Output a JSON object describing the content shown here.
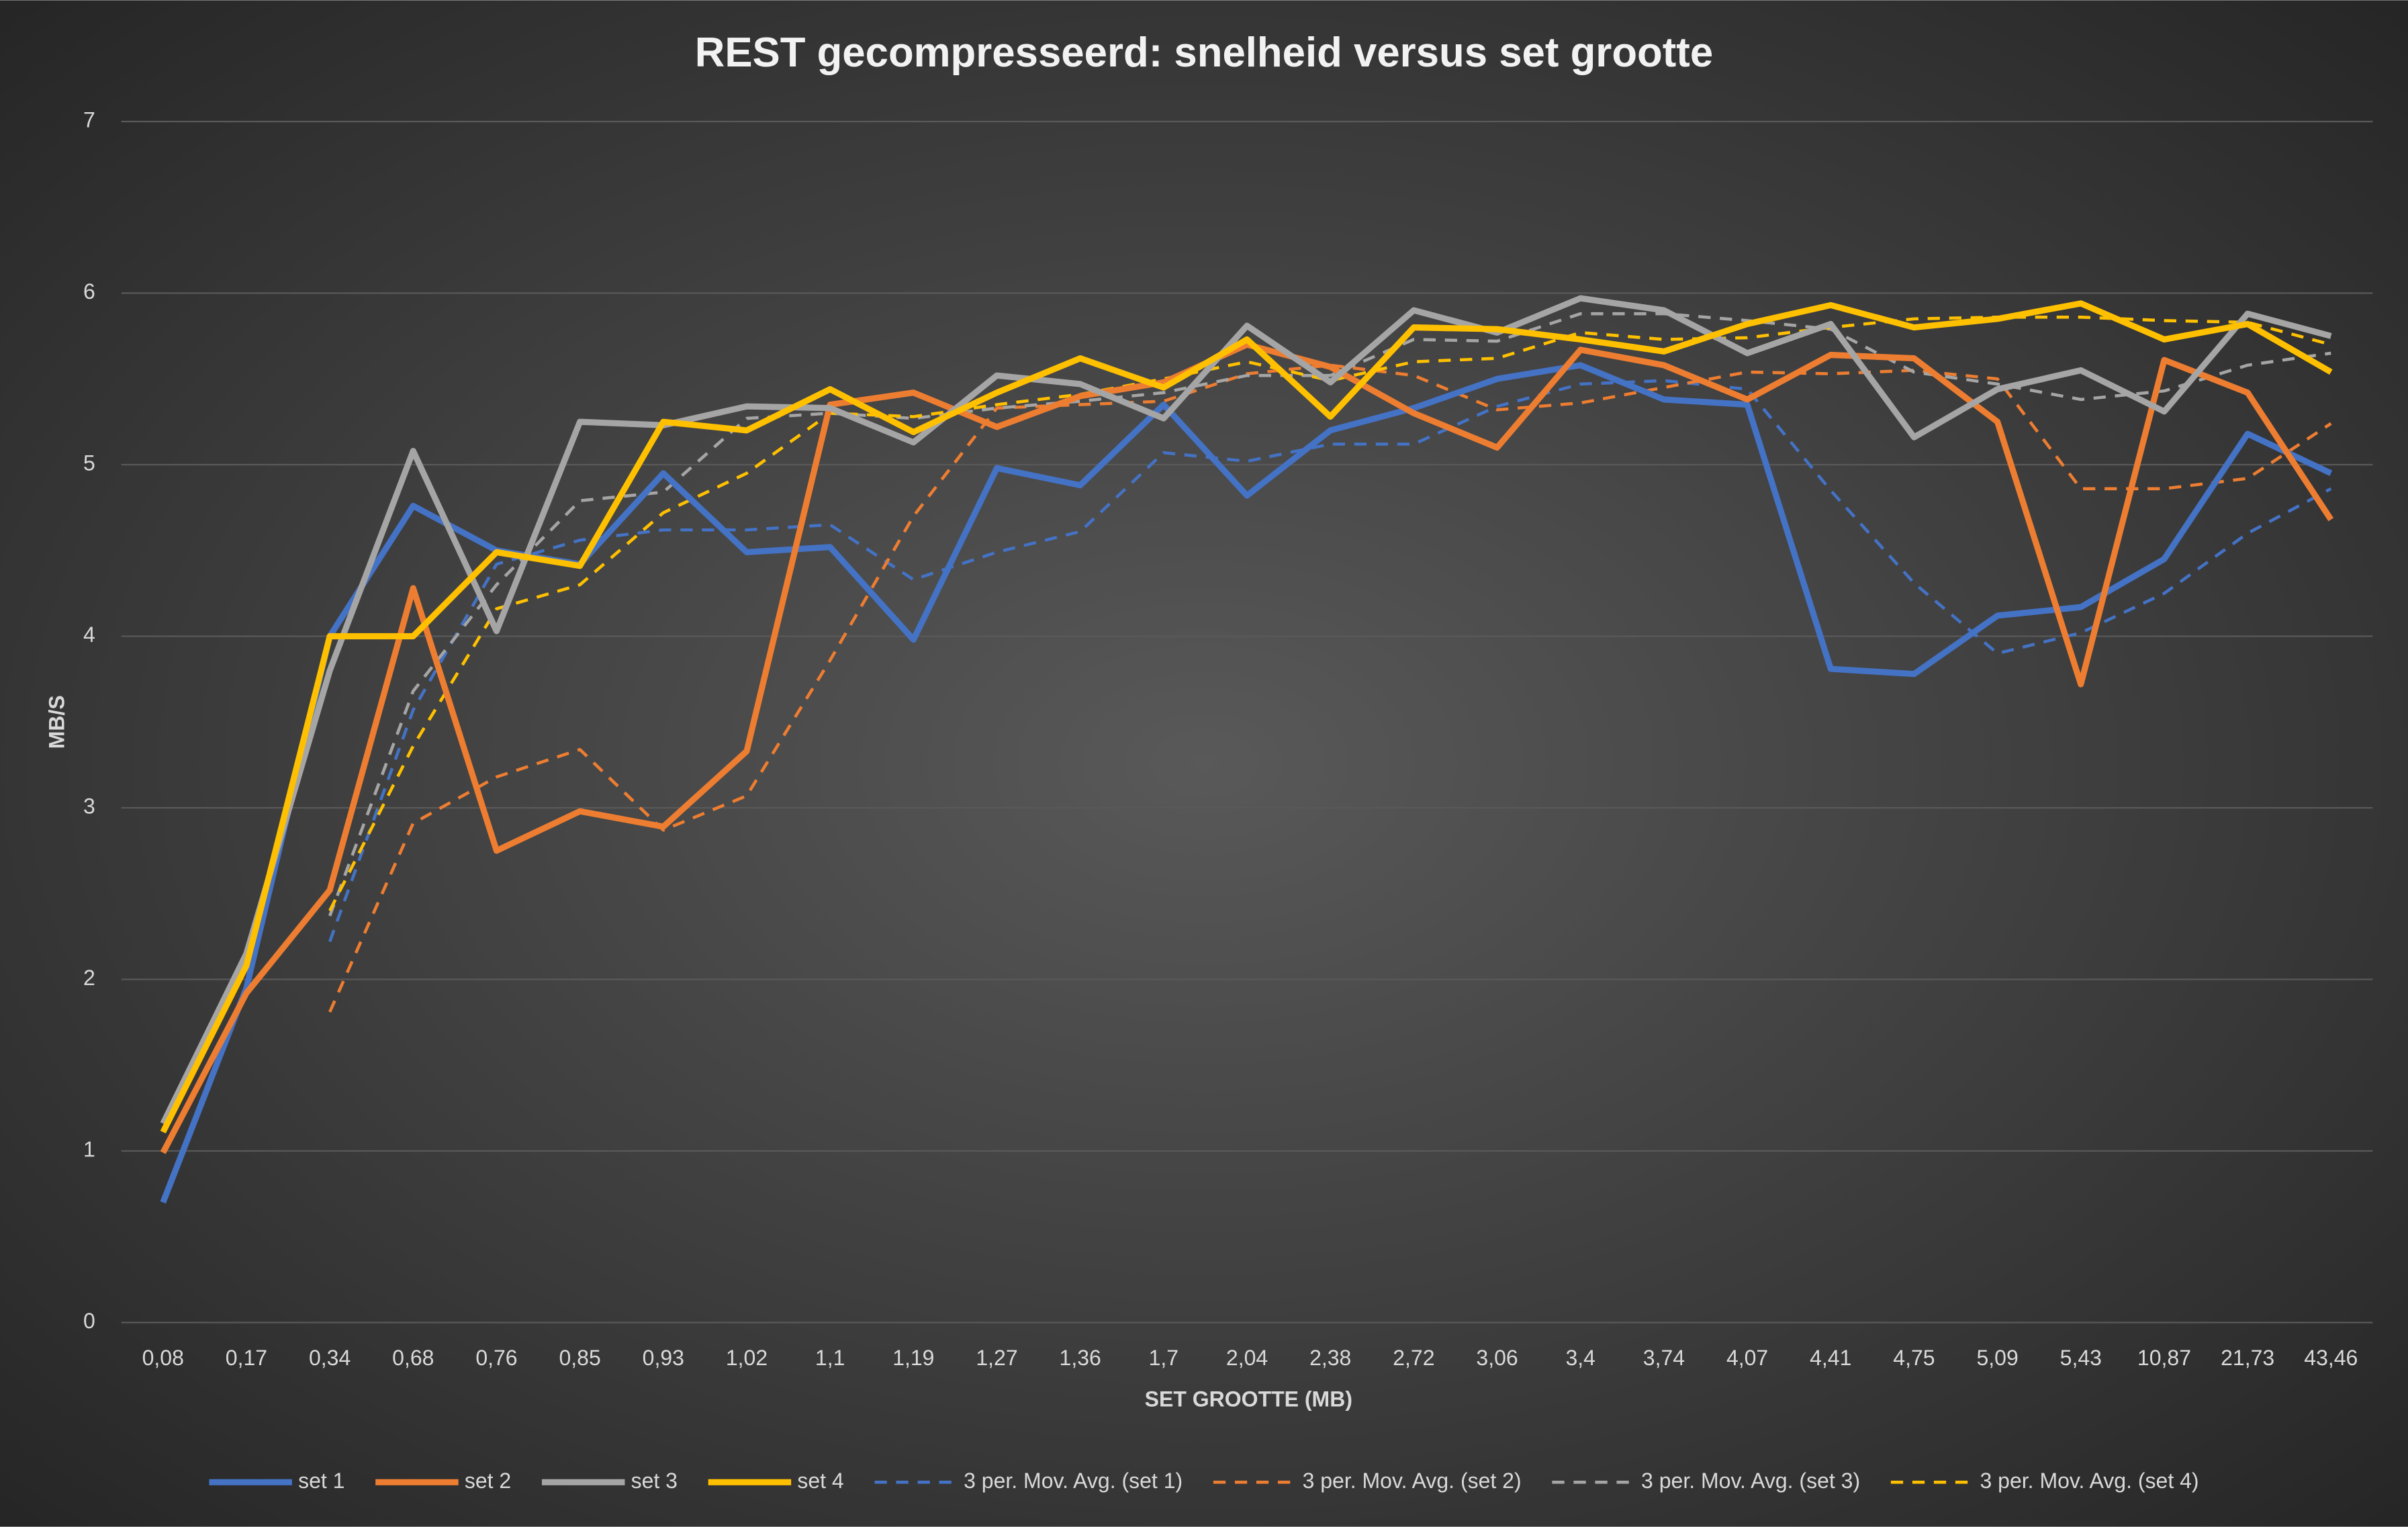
{
  "chart_data": {
    "type": "line",
    "title": "REST gecompresseerd: snelheid versus set grootte",
    "x_label": "SET GROOTTE (MB)",
    "y_label": "MB/S",
    "categories": [
      "0,08",
      "0,17",
      "0,34",
      "0,68",
      "0,76",
      "0,85",
      "0,93",
      "1,02",
      "1,1",
      "1,19",
      "1,27",
      "1,36",
      "1,7",
      "2,04",
      "2,38",
      "2,72",
      "3,06",
      "3,4",
      "3,74",
      "4,07",
      "4,41",
      "4,75",
      "5,09",
      "5,43",
      "10,87",
      "21,73",
      "43,46"
    ],
    "ylim": [
      0,
      7
    ],
    "yticks": [
      0,
      1,
      2,
      3,
      4,
      5,
      6,
      7
    ],
    "grid": true,
    "legend": "bottom",
    "series": [
      {
        "name": "set 1",
        "color": "#4472c4",
        "style": "solid",
        "values": [
          0.7,
          1.95,
          4.0,
          4.76,
          4.5,
          4.42,
          4.95,
          4.49,
          4.52,
          3.98,
          4.98,
          4.88,
          5.35,
          4.82,
          5.2,
          5.33,
          5.5,
          5.58,
          5.38,
          5.35,
          3.81,
          3.78,
          4.12,
          4.17,
          4.45,
          5.18,
          4.95
        ]
      },
      {
        "name": "set 2",
        "color": "#ed7d31",
        "style": "solid",
        "values": [
          0.99,
          1.92,
          2.52,
          4.28,
          2.75,
          2.98,
          2.89,
          3.33,
          5.35,
          5.42,
          5.22,
          5.4,
          5.48,
          5.7,
          5.57,
          5.3,
          5.1,
          5.67,
          5.58,
          5.38,
          5.64,
          5.62,
          5.25,
          3.72,
          5.61,
          5.42,
          4.68
        ]
      },
      {
        "name": "set 3",
        "color": "#a5a5a5",
        "style": "solid",
        "values": [
          1.16,
          2.15,
          3.8,
          5.08,
          4.03,
          5.25,
          5.23,
          5.34,
          5.33,
          5.13,
          5.52,
          5.47,
          5.27,
          5.81,
          5.48,
          5.9,
          5.77,
          5.97,
          5.9,
          5.65,
          5.82,
          5.16,
          5.44,
          5.55,
          5.31,
          5.88,
          5.75
        ]
      },
      {
        "name": "set 4",
        "color": "#ffc000",
        "style": "solid",
        "values": [
          1.11,
          2.08,
          4.0,
          4.0,
          4.49,
          4.41,
          5.25,
          5.2,
          5.44,
          5.19,
          5.42,
          5.62,
          5.45,
          5.73,
          5.28,
          5.8,
          5.79,
          5.73,
          5.66,
          5.82,
          5.93,
          5.8,
          5.85,
          5.94,
          5.73,
          5.82,
          5.54
        ]
      },
      {
        "name": "3 per. Mov. Avg. (set 1)",
        "color": "#4472c4",
        "style": "dashed",
        "values": [
          null,
          null,
          2.22,
          3.57,
          4.42,
          4.56,
          4.62,
          4.62,
          4.65,
          4.33,
          4.49,
          4.61,
          5.07,
          5.02,
          5.12,
          5.12,
          5.34,
          5.47,
          5.49,
          5.44,
          4.85,
          4.31,
          3.9,
          4.02,
          4.25,
          4.6,
          4.86
        ]
      },
      {
        "name": "3 per. Mov. Avg. (set 2)",
        "color": "#ed7d31",
        "style": "dashed",
        "values": [
          null,
          null,
          1.81,
          2.91,
          3.18,
          3.34,
          2.87,
          3.07,
          3.86,
          4.7,
          5.33,
          5.35,
          5.37,
          5.53,
          5.58,
          5.52,
          5.32,
          5.36,
          5.45,
          5.54,
          5.53,
          5.55,
          5.5,
          4.86,
          4.86,
          4.92,
          5.24
        ]
      },
      {
        "name": "3 per. Mov. Avg. (set 3)",
        "color": "#a5a5a5",
        "style": "dashed",
        "values": [
          null,
          null,
          2.37,
          3.68,
          4.3,
          4.79,
          4.84,
          5.27,
          5.3,
          5.27,
          5.33,
          5.37,
          5.42,
          5.52,
          5.52,
          5.73,
          5.72,
          5.88,
          5.88,
          5.84,
          5.79,
          5.54,
          5.47,
          5.38,
          5.43,
          5.58,
          5.65
        ]
      },
      {
        "name": "3 per. Mov. Avg. (set 4)",
        "color": "#ffc000",
        "style": "dashed",
        "values": [
          null,
          null,
          2.4,
          3.36,
          4.16,
          4.3,
          4.72,
          4.95,
          5.3,
          5.28,
          5.35,
          5.41,
          5.5,
          5.6,
          5.49,
          5.6,
          5.62,
          5.77,
          5.73,
          5.74,
          5.8,
          5.85,
          5.86,
          5.86,
          5.84,
          5.83,
          5.7
        ]
      }
    ]
  }
}
